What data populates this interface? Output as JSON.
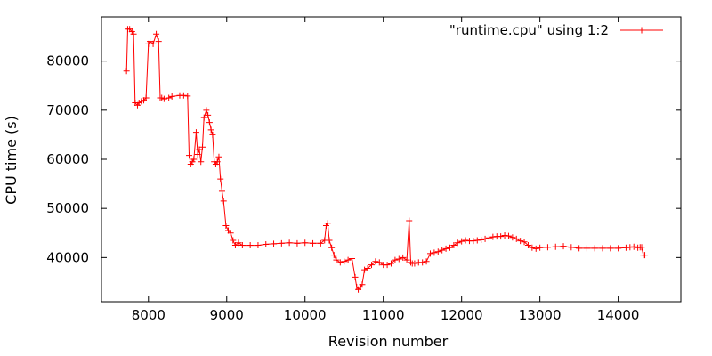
{
  "chart_data": {
    "type": "line",
    "title": "",
    "xlabel": "Revision number",
    "ylabel": "CPU time (s)",
    "xlim": [
      7400,
      14800
    ],
    "ylim": [
      31000,
      89000
    ],
    "x_ticks": [
      8000,
      9000,
      10000,
      11000,
      12000,
      13000,
      14000
    ],
    "y_ticks": [
      40000,
      50000,
      60000,
      70000,
      80000
    ],
    "grid": false,
    "legend_position": "top-right",
    "marker": "plus",
    "series": [
      {
        "name": "\"runtime.cpu\" using 1:2",
        "color": "#ff0000",
        "x": [
          7720,
          7735,
          7760,
          7790,
          7810,
          7830,
          7860,
          7880,
          7910,
          7940,
          7970,
          8000,
          8020,
          8060,
          8100,
          8130,
          8150,
          8170,
          8200,
          8260,
          8300,
          8400,
          8450,
          8500,
          8520,
          8540,
          8560,
          8580,
          8610,
          8630,
          8650,
          8670,
          8690,
          8710,
          8740,
          8760,
          8780,
          8800,
          8820,
          8840,
          8860,
          8880,
          8900,
          8920,
          8940,
          8960,
          8990,
          9020,
          9050,
          9080,
          9110,
          9150,
          9200,
          9300,
          9400,
          9500,
          9600,
          9700,
          9800,
          9900,
          10000,
          10100,
          10200,
          10250,
          10270,
          10290,
          10310,
          10340,
          10370,
          10400,
          10450,
          10500,
          10550,
          10600,
          10640,
          10660,
          10680,
          10710,
          10730,
          10760,
          10800,
          10850,
          10900,
          10950,
          11000,
          11050,
          11100,
          11150,
          11200,
          11250,
          11300,
          11330,
          11350,
          11370,
          11400,
          11450,
          11500,
          11550,
          11600,
          11650,
          11700,
          11750,
          11800,
          11850,
          11900,
          11950,
          12000,
          12050,
          12100,
          12150,
          12200,
          12250,
          12300,
          12350,
          12400,
          12450,
          12500,
          12550,
          12600,
          12650,
          12700,
          12750,
          12800,
          12850,
          12900,
          12950,
          13000,
          13100,
          13200,
          13300,
          13400,
          13500,
          13600,
          13700,
          13800,
          13900,
          14000,
          14100,
          14150,
          14200,
          14250,
          14280,
          14300,
          14320,
          14340
        ],
        "y": [
          78000,
          86500,
          86500,
          86000,
          85500,
          71500,
          71000,
          71500,
          71800,
          72000,
          72500,
          83500,
          84000,
          83500,
          85500,
          84000,
          72500,
          72500,
          72300,
          72500,
          72800,
          73000,
          73000,
          72900,
          60800,
          59000,
          59500,
          60000,
          65500,
          61000,
          62000,
          59500,
          62500,
          68500,
          70000,
          69000,
          67500,
          66000,
          65000,
          59500,
          59000,
          59500,
          60500,
          56000,
          53500,
          51500,
          46500,
          45500,
          45000,
          43500,
          42500,
          43000,
          42500,
          42500,
          42500,
          42700,
          42800,
          42900,
          43000,
          42900,
          43000,
          42900,
          42900,
          43500,
          46500,
          47000,
          43500,
          42000,
          40500,
          39500,
          39000,
          39200,
          39500,
          39800,
          36000,
          34000,
          33500,
          34000,
          34500,
          37500,
          37800,
          38500,
          39200,
          39000,
          38500,
          38500,
          38800,
          39500,
          39700,
          40000,
          39500,
          47500,
          39000,
          38800,
          38800,
          39000,
          39000,
          39200,
          40800,
          41000,
          41200,
          41500,
          41800,
          42000,
          42500,
          43000,
          43300,
          43500,
          43400,
          43400,
          43500,
          43600,
          43800,
          44000,
          44200,
          44300,
          44300,
          44500,
          44400,
          44100,
          43800,
          43400,
          43200,
          42500,
          42000,
          41800,
          42000,
          42100,
          42200,
          42300,
          42100,
          41900,
          41900,
          41900,
          41900,
          41900,
          41900,
          42000,
          42100,
          42200,
          42000,
          42100,
          42100,
          40500,
          40500
        ]
      }
    ]
  }
}
